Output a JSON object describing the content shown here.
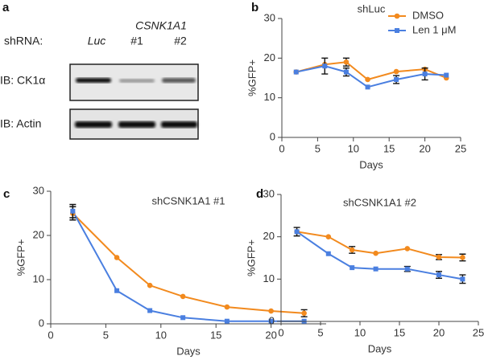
{
  "panel_labels": [
    "a",
    "b",
    "c",
    "d"
  ],
  "blot": {
    "header": "shRNA:",
    "group_label": "CSNK1A1",
    "lanes": [
      "Luc",
      "#1",
      "#2"
    ],
    "rows": [
      "IB: CK1α",
      "IB: Actin"
    ]
  },
  "chart_data": [
    {
      "type": "line",
      "title": "shLuc",
      "xlabel": "Days",
      "ylabel": "%GFP+",
      "x": [
        2,
        6,
        9,
        12,
        16,
        20,
        23
      ],
      "series": [
        {
          "name": "DMSO",
          "color": "#f28a1e",
          "marker": "circle",
          "values": [
            16.5,
            18.4,
            19,
            14.6,
            16.6,
            17.2,
            15
          ],
          "errors": [
            null,
            null,
            1,
            null,
            null,
            null,
            null
          ]
        },
        {
          "name": "Len 1 μM",
          "color": "#4a7fe0",
          "marker": "square",
          "values": [
            16.5,
            18,
            16.5,
            12.7,
            14.6,
            16,
            15.7
          ],
          "errors": [
            null,
            2,
            1,
            null,
            1,
            1.5,
            null
          ]
        }
      ],
      "xlim": [
        0,
        25
      ],
      "xticks": [
        0,
        5,
        10,
        15,
        20,
        25
      ],
      "ylim": [
        0,
        30
      ],
      "yticks": [
        0,
        10,
        20,
        30
      ],
      "legend": "upper right"
    },
    {
      "type": "line",
      "title": "shCSNK1A1 #1",
      "xlabel": "Days",
      "ylabel": "%GFP+",
      "x": [
        2,
        6,
        9,
        12,
        16,
        20,
        23
      ],
      "series": [
        {
          "color": "#f28a1e",
          "marker": "circle",
          "values": [
            25,
            15,
            8.7,
            6.2,
            3.8,
            2.9,
            2.4
          ],
          "errors": [
            1.5,
            null,
            null,
            null,
            null,
            null,
            0.8
          ]
        },
        {
          "color": "#4a7fe0",
          "marker": "square",
          "values": [
            25.5,
            7.5,
            3,
            1.4,
            0.6,
            0.6,
            0.6
          ],
          "errors": [
            1.5,
            null,
            null,
            null,
            null,
            null,
            null
          ]
        }
      ],
      "xlim": [
        0,
        25
      ],
      "xticks": [
        0,
        5,
        10,
        15,
        20
      ],
      "ylim": [
        0,
        30
      ],
      "yticks": [
        0,
        10,
        20,
        30
      ]
    },
    {
      "type": "line",
      "title": "shCSNK1A1 #2",
      "xlabel": "Days",
      "ylabel": "%GFP+",
      "x": [
        2,
        6,
        9,
        12,
        16,
        20,
        23
      ],
      "series": [
        {
          "color": "#f28a1e",
          "marker": "circle",
          "values": [
            21.2,
            20,
            16.9,
            16.1,
            17.2,
            15.2,
            15.1
          ],
          "errors": [
            null,
            null,
            0.8,
            null,
            null,
            0.6,
            0.8
          ]
        },
        {
          "color": "#4a7fe0",
          "marker": "square",
          "values": [
            21.2,
            16,
            12.7,
            12.4,
            12.4,
            11,
            10
          ],
          "errors": [
            1,
            null,
            null,
            null,
            0.6,
            0.8,
            1
          ]
        }
      ],
      "xlim": [
        0,
        25
      ],
      "xticks": [
        0,
        5,
        10,
        15,
        20,
        25
      ],
      "ylim": [
        0,
        30
      ],
      "yticks": [
        0,
        10,
        20,
        30
      ]
    }
  ]
}
